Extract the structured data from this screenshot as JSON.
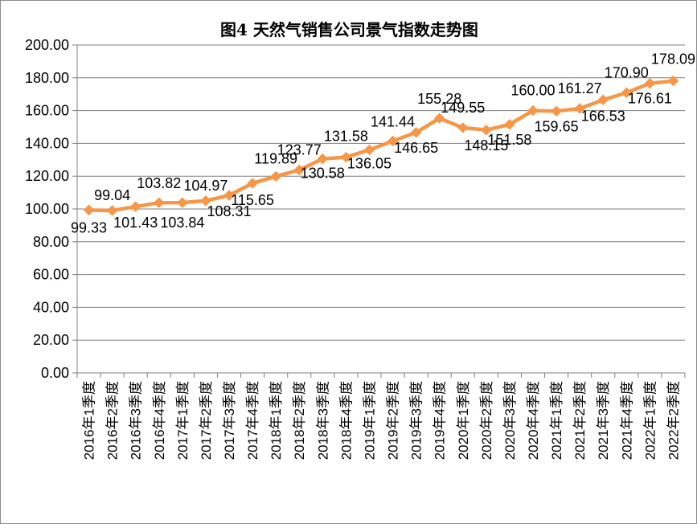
{
  "chart_data": {
    "type": "line",
    "title": "图4 天然气销售公司景气指数走势图",
    "xlabel": "",
    "ylabel": "",
    "ylim": [
      0,
      200
    ],
    "yticks": [
      "0.00",
      "20.00",
      "40.00",
      "60.00",
      "80.00",
      "100.00",
      "120.00",
      "140.00",
      "160.00",
      "180.00",
      "200.00"
    ],
    "grid": true,
    "legend": "none",
    "categories": [
      "2016年1季度",
      "2016年2季度",
      "2016年3季度",
      "2016年4季度",
      "2017年1季度",
      "2017年2季度",
      "2017年3季度",
      "2017年4季度",
      "2018年1季度",
      "2018年2季度",
      "2018年3季度",
      "2018年4季度",
      "2019年1季度",
      "2019年2季度",
      "2019年3季度",
      "2019年4季度",
      "2020年1季度",
      "2020年2季度",
      "2020年3季度",
      "2020年4季度",
      "2021年1季度",
      "2021年2季度",
      "2021年3季度",
      "2021年4季度",
      "2022年1季度",
      "2022年2季度"
    ],
    "values": [
      99.33,
      99.04,
      101.43,
      103.82,
      103.84,
      104.97,
      108.31,
      115.65,
      119.89,
      123.77,
      130.58,
      131.58,
      136.05,
      141.44,
      146.65,
      155.28,
      149.55,
      148.15,
      151.58,
      160.0,
      159.65,
      161.27,
      166.53,
      170.9,
      176.61,
      178.09
    ],
    "data_labels": [
      "99.33",
      "99.04",
      "101.43",
      "103.82",
      "103.84",
      "104.97",
      "108.31",
      "115.65",
      "119.89",
      "123.77",
      "130.58",
      "131.58",
      "136.05",
      "141.44",
      "146.65",
      "155.28",
      "149.55",
      "148.15",
      "151.58",
      "160.00",
      "159.65",
      "161.27",
      "166.53",
      "170.90",
      "176.61",
      "178.09"
    ],
    "colors": {
      "line": "#f79646",
      "grid": "#7f7f7f",
      "axis": "#7f7f7f",
      "text": "#000000"
    }
  }
}
